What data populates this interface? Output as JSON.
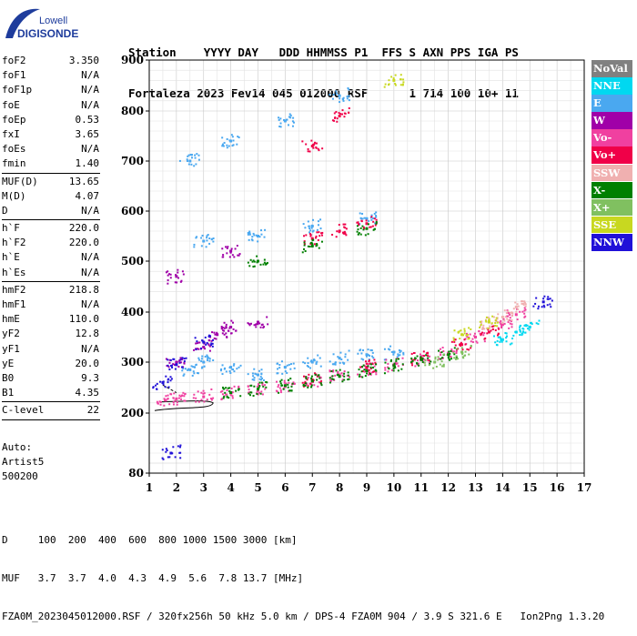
{
  "logo": {
    "line1": "Lowell",
    "line2": "DIGISONDE"
  },
  "header": {
    "labels": "Station    YYYY DAY   DDD HHMMSS P1  FFS S AXN PPS IGA PS",
    "values": "Fortaleza 2023 Fev14 045 012000 RSF      1 714 100 10+ 11"
  },
  "params": [
    {
      "name": "foF2",
      "value": "3.350"
    },
    {
      "name": "foF1",
      "value": "N/A"
    },
    {
      "name": "foF1p",
      "value": "N/A"
    },
    {
      "name": "foE",
      "value": "N/A"
    },
    {
      "name": "foEp",
      "value": "0.53"
    },
    {
      "name": "fxI",
      "value": "3.65"
    },
    {
      "name": "foEs",
      "value": "N/A"
    },
    {
      "name": "fmin",
      "value": "1.40"
    },
    {
      "sep": true
    },
    {
      "name": "MUF(D)",
      "value": "13.65"
    },
    {
      "name": "M(D)",
      "value": "4.07"
    },
    {
      "name": "D",
      "value": "N/A"
    },
    {
      "sep": true
    },
    {
      "name": "h`F",
      "value": "220.0"
    },
    {
      "name": "h`F2",
      "value": "220.0"
    },
    {
      "name": "h`E",
      "value": "N/A"
    },
    {
      "name": "h`Es",
      "value": "N/A"
    },
    {
      "sep": true
    },
    {
      "name": "hmF2",
      "value": "218.8"
    },
    {
      "name": "hmF1",
      "value": "N/A"
    },
    {
      "name": "hmE",
      "value": "110.0"
    },
    {
      "name": "yF2",
      "value": "12.8"
    },
    {
      "name": "yF1",
      "value": "N/A"
    },
    {
      "name": "yE",
      "value": "20.0"
    },
    {
      "name": "B0",
      "value": "9.3"
    },
    {
      "name": "B1",
      "value": "4.35"
    },
    {
      "sep": true
    },
    {
      "name": "C-level",
      "value": "22"
    },
    {
      "sep": true
    }
  ],
  "auto": {
    "line1": "Auto:",
    "line2": "Artist5",
    "line3": "500200"
  },
  "legend": [
    {
      "label": "NoVal",
      "color": "#808080"
    },
    {
      "label": "NNE",
      "color": "#00d8f0"
    },
    {
      "label": "E",
      "color": "#4aa8f0"
    },
    {
      "label": "W",
      "color": "#a000a8"
    },
    {
      "label": "Vo-",
      "color": "#f040a0"
    },
    {
      "label": "Vo+",
      "color": "#f00048"
    },
    {
      "label": "SSW",
      "color": "#f0b0b0"
    },
    {
      "label": "X-",
      "color": "#008000"
    },
    {
      "label": "X+",
      "color": "#80c060"
    },
    {
      "label": "SSE",
      "color": "#c8d820"
    },
    {
      "label": "NNW",
      "color": "#2010d8"
    }
  ],
  "footer": {
    "line1": "D     100  200  400  600  800 1000 1500 3000 [km]",
    "line2": "MUF   3.7  3.7  4.0  4.3  4.9  5.6  7.8 13.7 [MHz]",
    "line3": "FZA0M_2023045012000.RSF / 320fx256h 50 kHz 5.0 km / DPS-4 FZA0M 904 / 3.9 S 321.6 E   Ion2Png 1.3.20"
  },
  "chart_data": {
    "type": "scatter",
    "xlabel": "",
    "ylabel": "",
    "xlim": [
      1,
      17
    ],
    "ylim": [
      80,
      900
    ],
    "xticks": [
      1,
      2,
      3,
      4,
      5,
      6,
      7,
      8,
      9,
      10,
      11,
      12,
      13,
      14,
      15,
      16,
      17
    ],
    "yticks": [
      80,
      200,
      300,
      400,
      500,
      600,
      700,
      800,
      900
    ],
    "grid": true,
    "legend_position": "right",
    "series": [
      {
        "name": "E",
        "color_key": "E",
        "values": [
          [
            2.5,
            285
          ],
          [
            3,
            300
          ],
          [
            4,
            290
          ],
          [
            5,
            275
          ],
          [
            6,
            290
          ],
          [
            7,
            300
          ],
          [
            8,
            308
          ],
          [
            9,
            315
          ],
          [
            10,
            320
          ],
          [
            3,
            540
          ],
          [
            5,
            550
          ],
          [
            7,
            570
          ],
          [
            9,
            585
          ],
          [
            2.5,
            700
          ],
          [
            4,
            740
          ],
          [
            6,
            780
          ],
          [
            8,
            830
          ]
        ]
      },
      {
        "name": "Vo-",
        "color_key": "Vo-",
        "values": [
          [
            1.6,
            225
          ],
          [
            2,
            228
          ],
          [
            3,
            232
          ],
          [
            4,
            240
          ],
          [
            5,
            245
          ],
          [
            6,
            252
          ],
          [
            7,
            262
          ],
          [
            8,
            275
          ],
          [
            9,
            285
          ],
          [
            10,
            295
          ],
          [
            11,
            305
          ],
          [
            12,
            318
          ],
          [
            13,
            350
          ],
          [
            14,
            375
          ],
          [
            14.5,
            395
          ]
        ]
      },
      {
        "name": "Vo+",
        "color_key": "Vo+",
        "values": [
          [
            7,
            265
          ],
          [
            9,
            290
          ],
          [
            11,
            308
          ],
          [
            12.5,
            335
          ],
          [
            13.5,
            360
          ],
          [
            7,
            545
          ],
          [
            8,
            560
          ],
          [
            9,
            575
          ],
          [
            7,
            730
          ],
          [
            8,
            790
          ]
        ]
      },
      {
        "name": "X-",
        "color_key": "X-",
        "values": [
          [
            4,
            240
          ],
          [
            5,
            247
          ],
          [
            6,
            254
          ],
          [
            7,
            263
          ],
          [
            8,
            272
          ],
          [
            9,
            283
          ],
          [
            10,
            293
          ],
          [
            11,
            305
          ],
          [
            12,
            315
          ],
          [
            5,
            500
          ],
          [
            7,
            530
          ],
          [
            9,
            565
          ]
        ]
      },
      {
        "name": "W",
        "color_key": "W",
        "values": [
          [
            2,
            300
          ],
          [
            3,
            330
          ],
          [
            3.5,
            355
          ],
          [
            4,
            370
          ],
          [
            5,
            380
          ],
          [
            2,
            470
          ],
          [
            4,
            520
          ]
        ]
      },
      {
        "name": "NNW",
        "color_key": "NNW",
        "values": [
          [
            1.5,
            260
          ],
          [
            2,
            295
          ],
          [
            3,
            340
          ],
          [
            1.8,
            120
          ],
          [
            15.5,
            420
          ]
        ]
      },
      {
        "name": "SSW",
        "color_key": "SSW",
        "values": [
          [
            13.5,
            380
          ],
          [
            14,
            390
          ],
          [
            14.5,
            410
          ]
        ]
      },
      {
        "name": "SSE",
        "color_key": "SSE",
        "values": [
          [
            12.5,
            355
          ],
          [
            13.5,
            380
          ],
          [
            10,
            860
          ]
        ]
      },
      {
        "name": "NNE",
        "color_key": "NNE",
        "values": [
          [
            14,
            345
          ],
          [
            14.5,
            360
          ],
          [
            15,
            370
          ]
        ]
      },
      {
        "name": "X+",
        "color_key": "X+",
        "values": [
          [
            11.5,
            300
          ],
          [
            12.5,
            320
          ]
        ]
      }
    ]
  }
}
